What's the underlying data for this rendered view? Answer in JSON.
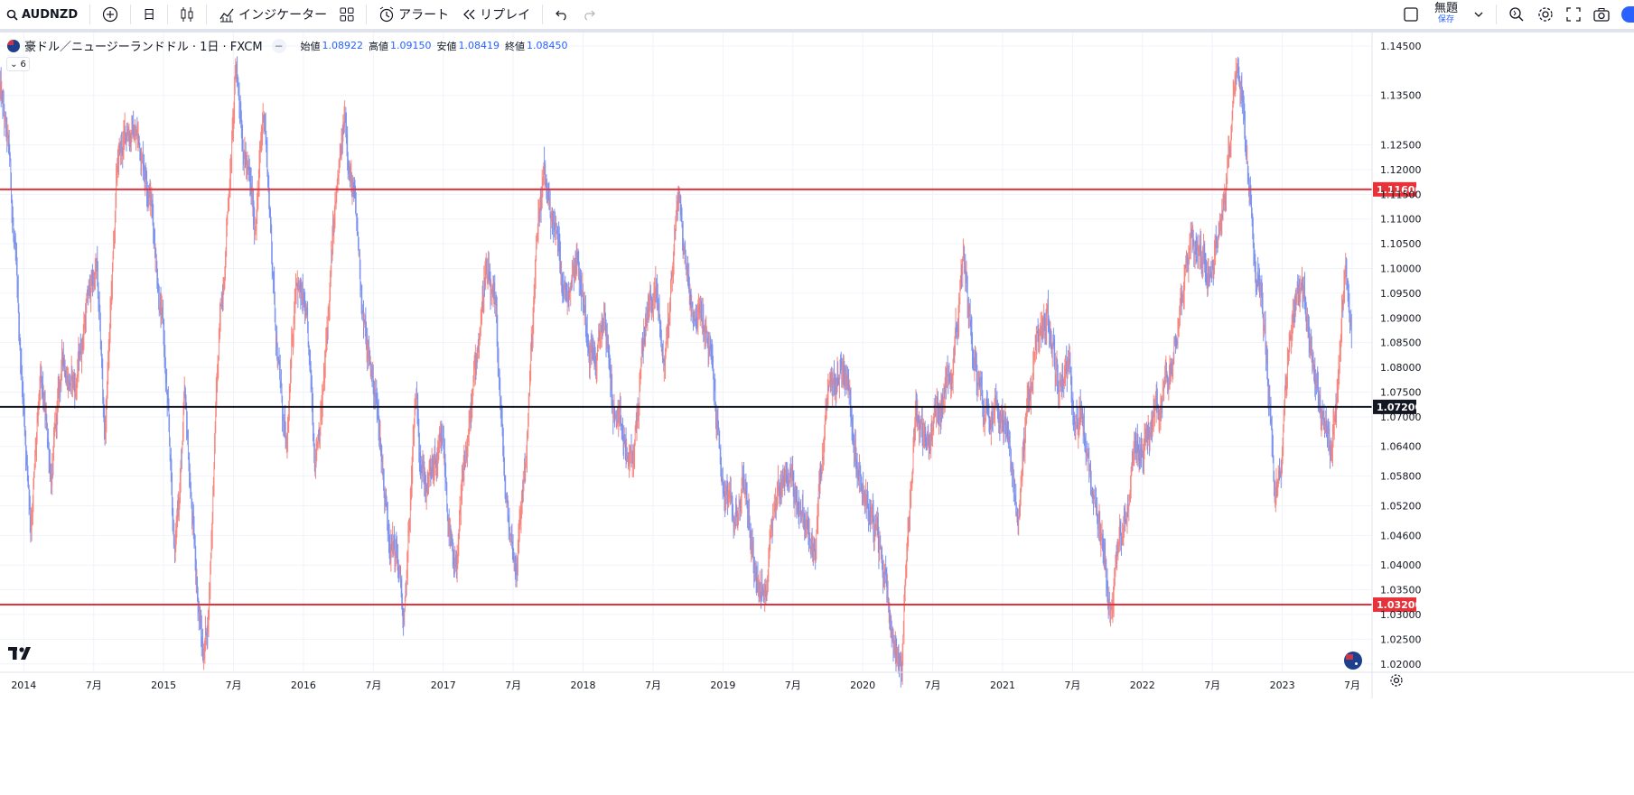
{
  "toolbar": {
    "symbol": "AUDNZD",
    "interval": "日",
    "indicators_label": "インジケーター",
    "alert_label": "アラート",
    "replay_label": "リプレイ",
    "layout_title": "無題",
    "layout_subtitle": "保存"
  },
  "legend": {
    "title": "豪ドル／ニュージーランドドル · 1日 · FXCM",
    "open_label": "始値",
    "open": "1.08922",
    "high_label": "高値",
    "high": "1.09150",
    "low_label": "安値",
    "low": "1.08419",
    "close_label": "終値",
    "close": "1.08450",
    "collapse_label": "6"
  },
  "colors": {
    "up": "#f7877f",
    "down": "#7c93f0",
    "resistance": "#e8323a",
    "midline": "#131722",
    "grid": "#f0f3fa",
    "label_red_bg": "#e8323a",
    "label_dark_bg": "#131722"
  },
  "chart_data": {
    "type": "candlestick",
    "title": "豪ドル／ニュージーランドドル · 1日 · FXCM",
    "xlabel": "",
    "ylabel": "",
    "ylim": [
      1.0185,
      1.147
    ],
    "y_ticks": [
      1.145,
      1.135,
      1.125,
      1.12,
      1.115,
      1.11,
      1.105,
      1.1,
      1.095,
      1.09,
      1.085,
      1.08,
      1.075,
      1.07,
      1.064,
      1.058,
      1.052,
      1.046,
      1.04,
      1.035,
      1.03,
      1.025,
      1.02
    ],
    "y_tick_labels": [
      "1.14500",
      "1.13500",
      "1.12500",
      "1.12000",
      "1.11500",
      "1.11000",
      "1.10500",
      "1.10000",
      "1.09500",
      "1.09000",
      "1.08500",
      "1.08000",
      "1.07500",
      "1.07000",
      "1.06400",
      "1.05800",
      "1.05200",
      "1.04600",
      "1.04000",
      "1.03500",
      "1.03000",
      "1.02500",
      "1.02000"
    ],
    "x_ticks": [
      {
        "label": "2014",
        "t": 2014.0
      },
      {
        "label": "7月",
        "t": 2014.5
      },
      {
        "label": "2015",
        "t": 2015.0
      },
      {
        "label": "7月",
        "t": 2015.5
      },
      {
        "label": "2016",
        "t": 2016.0
      },
      {
        "label": "7月",
        "t": 2016.5
      },
      {
        "label": "2017",
        "t": 2017.0
      },
      {
        "label": "7月",
        "t": 2017.5
      },
      {
        "label": "2018",
        "t": 2018.0
      },
      {
        "label": "7月",
        "t": 2018.5
      },
      {
        "label": "2019",
        "t": 2019.0
      },
      {
        "label": "7月",
        "t": 2019.5
      },
      {
        "label": "2020",
        "t": 2020.0
      },
      {
        "label": "7月",
        "t": 2020.5
      },
      {
        "label": "2021",
        "t": 2021.0
      },
      {
        "label": "7月",
        "t": 2021.5
      },
      {
        "label": "2022",
        "t": 2022.0
      },
      {
        "label": "7月",
        "t": 2022.5
      },
      {
        "label": "2023",
        "t": 2023.0
      },
      {
        "label": "7月",
        "t": 2023.5
      }
    ],
    "x_range": [
      2013.83,
      2023.5
    ],
    "horizontal_lines": [
      {
        "price": 1.116,
        "label": "1.11600",
        "color": "#e8323a"
      },
      {
        "price": 1.072,
        "label": "1.07200",
        "color": "#131722"
      },
      {
        "price": 1.032,
        "label": "1.03200",
        "color": "#e8323a"
      }
    ],
    "price_path": [
      [
        2013.83,
        1.136
      ],
      [
        2013.9,
        1.12
      ],
      [
        2013.97,
        1.085
      ],
      [
        2014.05,
        1.05
      ],
      [
        2014.12,
        1.075
      ],
      [
        2014.2,
        1.058
      ],
      [
        2014.28,
        1.082
      ],
      [
        2014.37,
        1.076
      ],
      [
        2014.45,
        1.093
      ],
      [
        2014.52,
        1.1
      ],
      [
        2014.58,
        1.066
      ],
      [
        2014.67,
        1.12
      ],
      [
        2014.75,
        1.129
      ],
      [
        2014.82,
        1.126
      ],
      [
        2014.9,
        1.118
      ],
      [
        2015.0,
        1.086
      ],
      [
        2015.08,
        1.042
      ],
      [
        2015.15,
        1.072
      ],
      [
        2015.22,
        1.043
      ],
      [
        2015.28,
        1.022
      ],
      [
        2015.32,
        1.03
      ],
      [
        2015.38,
        1.076
      ],
      [
        2015.45,
        1.109
      ],
      [
        2015.52,
        1.14
      ],
      [
        2015.58,
        1.125
      ],
      [
        2015.65,
        1.108
      ],
      [
        2015.72,
        1.133
      ],
      [
        2015.8,
        1.09
      ],
      [
        2015.88,
        1.06
      ],
      [
        2015.95,
        1.101
      ],
      [
        2016.02,
        1.088
      ],
      [
        2016.08,
        1.063
      ],
      [
        2016.15,
        1.078
      ],
      [
        2016.22,
        1.109
      ],
      [
        2016.3,
        1.13
      ],
      [
        2016.37,
        1.111
      ],
      [
        2016.45,
        1.084
      ],
      [
        2016.52,
        1.074
      ],
      [
        2016.6,
        1.05
      ],
      [
        2016.68,
        1.04
      ],
      [
        2016.72,
        1.026
      ],
      [
        2016.8,
        1.072
      ],
      [
        2016.88,
        1.056
      ],
      [
        2017.0,
        1.062
      ],
      [
        2017.08,
        1.035
      ],
      [
        2017.15,
        1.058
      ],
      [
        2017.22,
        1.076
      ],
      [
        2017.3,
        1.1
      ],
      [
        2017.38,
        1.087
      ],
      [
        2017.45,
        1.051
      ],
      [
        2017.52,
        1.04
      ],
      [
        2017.6,
        1.066
      ],
      [
        2017.68,
        1.109
      ],
      [
        2017.72,
        1.118
      ],
      [
        2017.8,
        1.108
      ],
      [
        2017.88,
        1.095
      ],
      [
        2017.95,
        1.105
      ],
      [
        2018.02,
        1.09
      ],
      [
        2018.1,
        1.081
      ],
      [
        2018.15,
        1.091
      ],
      [
        2018.22,
        1.071
      ],
      [
        2018.28,
        1.064
      ],
      [
        2018.35,
        1.059
      ],
      [
        2018.45,
        1.09
      ],
      [
        2018.52,
        1.096
      ],
      [
        2018.58,
        1.08
      ],
      [
        2018.62,
        1.093
      ],
      [
        2018.68,
        1.116
      ],
      [
        2018.72,
        1.104
      ],
      [
        2018.78,
        1.093
      ],
      [
        2018.85,
        1.09
      ],
      [
        2018.92,
        1.08
      ],
      [
        2019.0,
        1.056
      ],
      [
        2019.08,
        1.048
      ],
      [
        2019.15,
        1.058
      ],
      [
        2019.22,
        1.041
      ],
      [
        2019.3,
        1.032
      ],
      [
        2019.35,
        1.052
      ],
      [
        2019.45,
        1.06
      ],
      [
        2019.55,
        1.053
      ],
      [
        2019.65,
        1.041
      ],
      [
        2019.75,
        1.072
      ],
      [
        2019.82,
        1.078
      ],
      [
        2019.88,
        1.081
      ],
      [
        2019.95,
        1.064
      ],
      [
        2020.02,
        1.055
      ],
      [
        2020.1,
        1.045
      ],
      [
        2020.18,
        1.035
      ],
      [
        2020.22,
        1.025
      ],
      [
        2020.28,
        1.021
      ],
      [
        2020.32,
        1.045
      ],
      [
        2020.38,
        1.073
      ],
      [
        2020.45,
        1.064
      ],
      [
        2020.52,
        1.07
      ],
      [
        2020.58,
        1.073
      ],
      [
        2020.65,
        1.085
      ],
      [
        2020.72,
        1.1
      ],
      [
        2020.8,
        1.082
      ],
      [
        2020.88,
        1.072
      ],
      [
        2020.95,
        1.076
      ],
      [
        2021.02,
        1.069
      ],
      [
        2021.1,
        1.048
      ],
      [
        2021.18,
        1.073
      ],
      [
        2021.25,
        1.085
      ],
      [
        2021.32,
        1.09
      ],
      [
        2021.4,
        1.076
      ],
      [
        2021.45,
        1.082
      ],
      [
        2021.5,
        1.076
      ],
      [
        2021.58,
        1.068
      ],
      [
        2021.65,
        1.05
      ],
      [
        2021.72,
        1.039
      ],
      [
        2021.78,
        1.03
      ],
      [
        2021.82,
        1.041
      ],
      [
        2021.88,
        1.052
      ],
      [
        2021.95,
        1.063
      ],
      [
        2022.05,
        1.067
      ],
      [
        2022.12,
        1.072
      ],
      [
        2022.2,
        1.079
      ],
      [
        2022.28,
        1.099
      ],
      [
        2022.35,
        1.107
      ],
      [
        2022.42,
        1.103
      ],
      [
        2022.5,
        1.103
      ],
      [
        2022.55,
        1.109
      ],
      [
        2022.62,
        1.124
      ],
      [
        2022.68,
        1.144
      ],
      [
        2022.72,
        1.131
      ],
      [
        2022.78,
        1.108
      ],
      [
        2022.85,
        1.097
      ],
      [
        2022.9,
        1.076
      ],
      [
        2022.95,
        1.055
      ],
      [
        2023.0,
        1.064
      ],
      [
        2023.05,
        1.087
      ],
      [
        2023.12,
        1.1
      ],
      [
        2023.2,
        1.085
      ],
      [
        2023.28,
        1.072
      ],
      [
        2023.35,
        1.064
      ],
      [
        2023.4,
        1.075
      ],
      [
        2023.45,
        1.1
      ],
      [
        2023.5,
        1.087
      ]
    ]
  }
}
